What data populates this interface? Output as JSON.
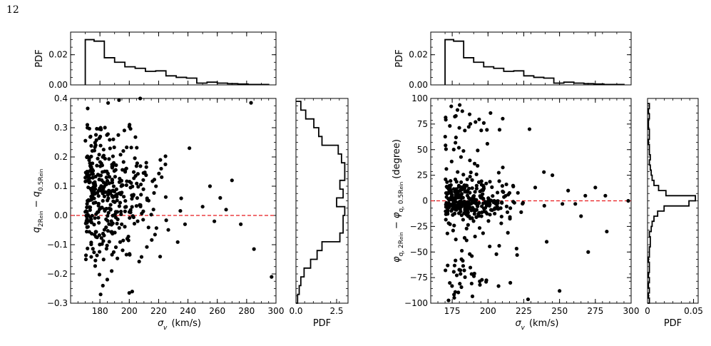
{
  "page": {
    "number": "12"
  },
  "chart_data": [
    {
      "type": "histogram",
      "panel": "left-top",
      "ylabel": "PDF",
      "xlim": [
        160,
        300
      ],
      "ylim": [
        0,
        0.035
      ],
      "yticks": [
        "0.00",
        "0.02"
      ],
      "bin_edges": [
        170,
        176,
        183,
        190,
        197,
        204,
        211,
        218,
        225,
        232,
        239,
        246,
        253,
        260,
        267,
        274,
        281,
        288,
        295
      ],
      "values": [
        0.03,
        0.029,
        0.018,
        0.015,
        0.012,
        0.011,
        0.009,
        0.0093,
        0.006,
        0.005,
        0.0045,
        0.0012,
        0.0018,
        0.0012,
        0.0008,
        0.0006,
        0.0003,
        0.0003
      ]
    },
    {
      "type": "scatter",
      "panel": "left-main",
      "xlabel": "σ_v (km/s)",
      "ylabel": "q_2R_ein − q_0.5R_ein",
      "xlim": [
        160,
        300
      ],
      "ylim": [
        -0.3,
        0.4
      ],
      "xticks": [
        "180",
        "200",
        "220",
        "240",
        "260",
        "280",
        "300"
      ],
      "yticks": [
        "−0.3",
        "−0.2",
        "−0.1",
        "0.0",
        "0.1",
        "0.2",
        "0.3",
        "0.4"
      ],
      "reference_line": {
        "y": 0.0,
        "color": "#e8191c",
        "style": "dashed"
      },
      "generator": {
        "seed": 7,
        "n": 400,
        "center": 0.08,
        "spread": 0.115,
        "clip": [
          -0.27,
          0.4
        ]
      },
      "extra_points": [
        [
          283,
          0.385
        ],
        [
          297,
          -0.21
        ],
        [
          285,
          -0.115
        ],
        [
          270,
          0.12
        ],
        [
          276,
          -0.03
        ],
        [
          262,
          0.06
        ],
        [
          266,
          0.02
        ],
        [
          255,
          0.1
        ],
        [
          258,
          -0.02
        ],
        [
          250,
          0.03
        ],
        [
          241,
          0.23
        ],
        [
          238,
          -0.03
        ],
        [
          188,
          -0.19
        ],
        [
          182,
          -0.24
        ],
        [
          200,
          -0.265
        ],
        [
          202,
          -0.26
        ]
      ]
    },
    {
      "type": "histogram",
      "orientation": "horizontal",
      "panel": "left-side",
      "xlabel": "PDF",
      "xlim": [
        0,
        3.2
      ],
      "xticks": [
        "0.0",
        "2.5"
      ],
      "bin_edges": [
        -0.3,
        -0.27,
        -0.24,
        -0.21,
        -0.18,
        -0.15,
        -0.12,
        -0.09,
        -0.06,
        -0.03,
        0.0,
        0.03,
        0.06,
        0.09,
        0.12,
        0.15,
        0.18,
        0.21,
        0.24,
        0.27,
        0.3,
        0.33,
        0.36,
        0.39
      ],
      "values": [
        0.1,
        0.2,
        0.3,
        0.5,
        0.9,
        1.3,
        1.6,
        2.7,
        2.9,
        2.9,
        3.0,
        2.5,
        2.9,
        2.7,
        3.0,
        3.0,
        2.8,
        2.6,
        1.6,
        1.4,
        1.1,
        0.6,
        0.3
      ]
    },
    {
      "type": "histogram",
      "panel": "right-top",
      "ylabel": "PDF",
      "xlim": [
        160,
        300
      ],
      "ylim": [
        0,
        0.035
      ],
      "yticks": [
        "0.00",
        "0.02"
      ],
      "bin_edges": [
        170,
        176,
        183,
        190,
        197,
        204,
        211,
        218,
        225,
        232,
        239,
        246,
        253,
        260,
        267,
        274,
        281,
        288,
        295
      ],
      "values": [
        0.03,
        0.029,
        0.018,
        0.015,
        0.012,
        0.011,
        0.009,
        0.0093,
        0.006,
        0.005,
        0.0045,
        0.0012,
        0.0018,
        0.0012,
        0.0008,
        0.0006,
        0.0003,
        0.0003
      ]
    },
    {
      "type": "scatter",
      "panel": "right-main",
      "xlabel": "σ_v (km/s)",
      "ylabel": "φ_q,2R_ein − φ_q,0.5R_ein (degree)",
      "xlim": [
        160,
        300
      ],
      "ylim": [
        -100,
        100
      ],
      "xticks": [
        "175",
        "200",
        "225",
        "250",
        "275",
        "300"
      ],
      "yticks": [
        "−100",
        "−75",
        "−50",
        "−25",
        "0",
        "25",
        "50",
        "75",
        "100"
      ],
      "reference_line": {
        "y": 0,
        "color": "#e8191c",
        "style": "dashed"
      },
      "generator": {
        "seed": 11,
        "n": 400,
        "center": 0,
        "spread": 9,
        "outlier_fraction": 0.3,
        "outlier_range": [
          -98,
          95
        ],
        "clip": [
          -98,
          95
        ]
      },
      "extra_points": [
        [
          298,
          0
        ],
        [
          283,
          -30
        ],
        [
          282,
          5
        ],
        [
          275,
          13
        ],
        [
          270,
          -50
        ],
        [
          265,
          -15
        ],
        [
          268,
          5
        ],
        [
          252,
          -3
        ],
        [
          245,
          25
        ],
        [
          250,
          -88
        ],
        [
          241,
          -40
        ],
        [
          256,
          10
        ],
        [
          229,
          70
        ],
        [
          233,
          13
        ],
        [
          261,
          -3
        ]
      ]
    },
    {
      "type": "histogram",
      "orientation": "horizontal",
      "panel": "right-side",
      "xlabel": "PDF",
      "xlim": [
        0,
        0.055
      ],
      "xticks": [
        "0",
        "0.05"
      ],
      "bin_edges": [
        -100,
        -95,
        -90,
        -85,
        -80,
        -75,
        -70,
        -65,
        -60,
        -55,
        -50,
        -45,
        -40,
        -35,
        -30,
        -25,
        -20,
        -15,
        -10,
        -5,
        0,
        5,
        10,
        15,
        20,
        25,
        30,
        35,
        40,
        45,
        50,
        55,
        60,
        65,
        70,
        75,
        80,
        85,
        90,
        95
      ],
      "values": [
        0.002,
        0.001,
        0.002,
        0.001,
        0.002,
        0.001,
        0.002,
        0.002,
        0.001,
        0.002,
        0.002,
        0.003,
        0.003,
        0.002,
        0.004,
        0.005,
        0.007,
        0.011,
        0.018,
        0.045,
        0.052,
        0.02,
        0.012,
        0.007,
        0.005,
        0.004,
        0.003,
        0.002,
        0.003,
        0.002,
        0.002,
        0.001,
        0.002,
        0.002,
        0.001,
        0.001,
        0.002,
        0.001,
        0.002
      ]
    }
  ]
}
